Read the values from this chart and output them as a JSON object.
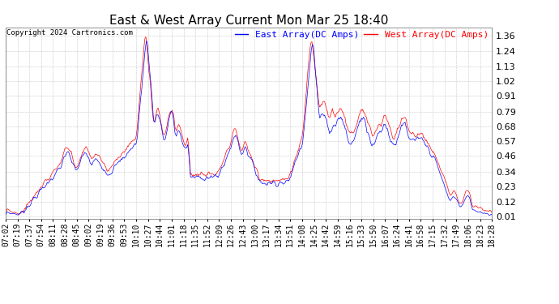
{
  "title": "East & West Array Current Mon Mar 25 18:40",
  "copyright": "Copyright 2024 Cartronics.com",
  "east_label": "East Array(DC Amps)",
  "west_label": "West Array(DC Amps)",
  "east_color": "#0000ff",
  "west_color": "#ff0000",
  "yticks": [
    0.01,
    0.12,
    0.23,
    0.34,
    0.46,
    0.57,
    0.68,
    0.79,
    0.91,
    1.02,
    1.13,
    1.24,
    1.36
  ],
  "ylim": [
    -0.01,
    1.42
  ],
  "background_color": "#ffffff",
  "grid_color": "#bbbbbb",
  "title_fontsize": 11,
  "tick_fontsize": 7,
  "legend_fontsize": 8,
  "x_tick_labels": [
    "07:02",
    "07:19",
    "07:37",
    "07:54",
    "08:11",
    "08:28",
    "08:45",
    "09:02",
    "09:19",
    "09:36",
    "09:53",
    "10:10",
    "10:27",
    "10:44",
    "11:01",
    "11:18",
    "11:35",
    "11:52",
    "12:09",
    "12:26",
    "12:43",
    "13:00",
    "13:17",
    "13:34",
    "13:51",
    "14:08",
    "14:25",
    "14:42",
    "14:59",
    "15:16",
    "15:33",
    "15:50",
    "16:07",
    "16:24",
    "16:41",
    "16:58",
    "17:15",
    "17:32",
    "17:49",
    "18:06",
    "18:23",
    "18:28"
  ],
  "n_points": 690
}
